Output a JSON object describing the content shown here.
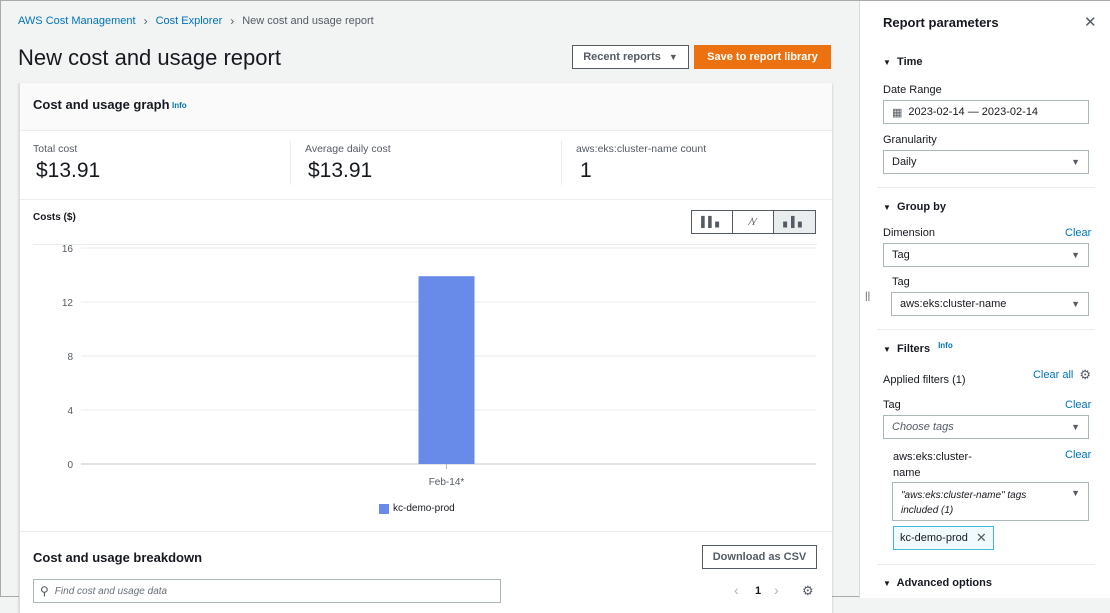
{
  "breadcrumb": [
    "AWS Cost Management",
    "Cost Explorer",
    "New cost and usage report"
  ],
  "page_title": "New cost and usage report",
  "buttons": {
    "recent_reports": "Recent reports",
    "save": "Save to report library",
    "download_csv": "Download as CSV"
  },
  "graph_card": {
    "title": "Cost and usage graph",
    "info": "Info",
    "metrics": [
      {
        "label": "Total cost",
        "value": "$13.91"
      },
      {
        "label": "Average daily cost",
        "value": "$13.91"
      },
      {
        "label": "aws:eks:cluster-name count",
        "value": "1"
      }
    ]
  },
  "chart_data": {
    "type": "bar",
    "ylabel": "Costs ($)",
    "categories": [
      "Feb-14*"
    ],
    "series": [
      {
        "name": "kc-demo-prod",
        "values": [
          13.91
        ]
      }
    ],
    "ylim": [
      0,
      16
    ],
    "yticks": [
      0,
      4,
      8,
      12,
      16
    ],
    "grid": true,
    "legend": "bottom",
    "colors": {
      "kc-demo-prod": "#688ae8"
    }
  },
  "chart_types": [
    "bar-chart-icon",
    "line-chart-icon",
    "stacked-bar-icon"
  ],
  "breakdown": {
    "title": "Cost and usage breakdown",
    "search_placeholder": "Find cost and usage data",
    "page": "1"
  },
  "panel": {
    "title": "Report parameters",
    "time": {
      "section": "Time",
      "date_range_label": "Date Range",
      "date_range": "2023-02-14 — 2023-02-14",
      "granularity_label": "Granularity",
      "granularity": "Daily"
    },
    "group_by": {
      "section": "Group by",
      "dimension_label": "Dimension",
      "clear": "Clear",
      "dimension": "Tag",
      "tag_label": "Tag",
      "tag": "aws:eks:cluster-name"
    },
    "filters": {
      "section": "Filters",
      "info": "Info",
      "applied": "Applied filters (1)",
      "clear_all": "Clear all",
      "tag_label": "Tag",
      "clear": "Clear",
      "tag_placeholder": "Choose tags",
      "subtag_label": "aws:eks:cluster-name",
      "subtag_select": "\"aws:eks:cluster-name\" tags included (1)",
      "token": "kc-demo-prod"
    },
    "advanced": "Advanced options"
  },
  "colors": {
    "accent": "#ec7211",
    "link": "#0073bb"
  }
}
